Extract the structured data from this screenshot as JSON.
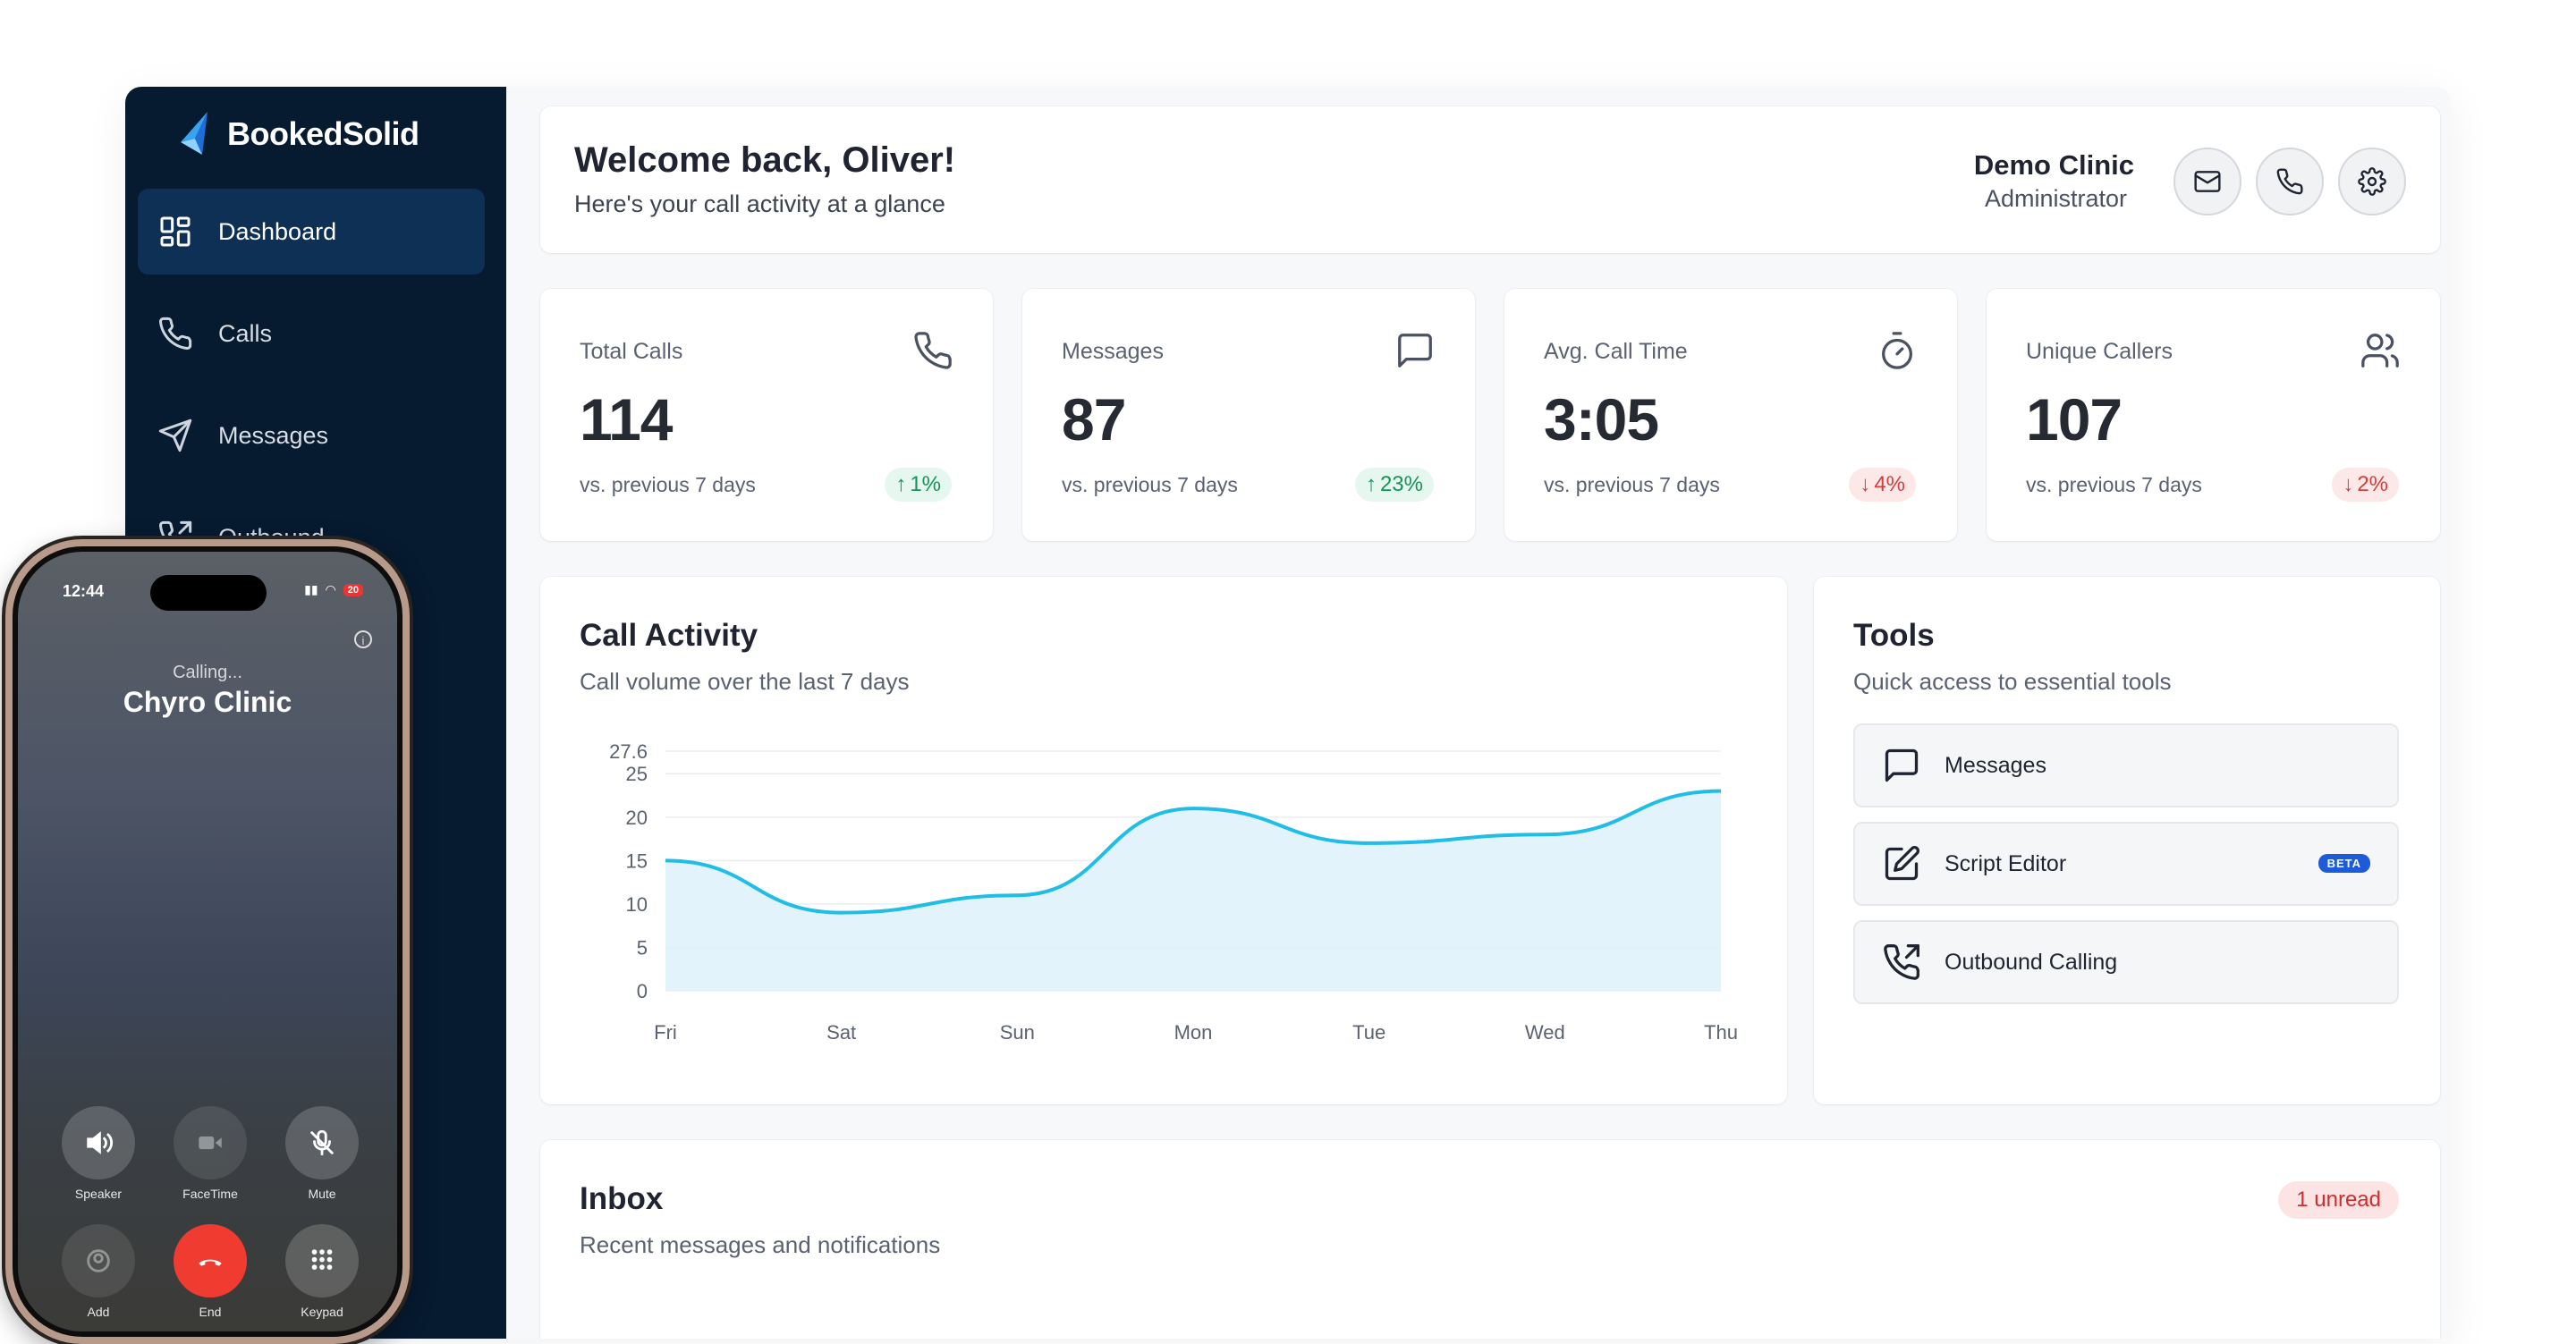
{
  "brand": {
    "name": "BookedSolid"
  },
  "sidebar": {
    "items": [
      {
        "label": "Dashboard",
        "icon": "dashboard-icon",
        "active": true
      },
      {
        "label": "Calls",
        "icon": "phone-icon"
      },
      {
        "label": "Messages",
        "icon": "send-icon"
      },
      {
        "label": "Outbound",
        "icon": "phone-outgoing-icon"
      }
    ]
  },
  "header": {
    "title": "Welcome back, Oliver!",
    "subtitle": "Here's your call activity at a glance",
    "clinic": "Demo Clinic",
    "role": "Administrator",
    "buttons": [
      "mail-icon",
      "phone-icon",
      "settings-icon"
    ]
  },
  "stats": [
    {
      "label": "Total Calls",
      "value": "114",
      "compare": "vs. previous 7 days",
      "change": "1%",
      "direction": "up",
      "icon": "phone-icon"
    },
    {
      "label": "Messages",
      "value": "87",
      "compare": "vs. previous 7 days",
      "change": "23%",
      "direction": "up",
      "icon": "message-square-icon"
    },
    {
      "label": "Avg. Call Time",
      "value": "3:05",
      "compare": "vs. previous 7 days",
      "change": "4%",
      "direction": "down",
      "icon": "timer-icon"
    },
    {
      "label": "Unique Callers",
      "value": "107",
      "compare": "vs. previous 7 days",
      "change": "2%",
      "direction": "down",
      "icon": "users-icon"
    }
  ],
  "activity": {
    "title": "Call Activity",
    "subtitle": "Call volume over the last 7 days"
  },
  "chart_data": {
    "type": "area",
    "categories": [
      "Fri",
      "Sat",
      "Sun",
      "Mon",
      "Tue",
      "Wed",
      "Thu"
    ],
    "values": [
      15,
      9,
      11,
      21,
      17,
      18,
      23
    ],
    "ylim": [
      0,
      27.6
    ],
    "yticks": [
      "0",
      "5",
      "10",
      "15",
      "20",
      "25",
      "27.6"
    ],
    "grid": true,
    "colors": {
      "line": "#20bde6",
      "fill": "#dff2fb"
    }
  },
  "tools": {
    "title": "Tools",
    "subtitle": "Quick access to essential tools",
    "items": [
      {
        "label": "Messages",
        "icon": "message-square-icon"
      },
      {
        "label": "Script Editor",
        "icon": "edit-icon",
        "badge": "BETA"
      },
      {
        "label": "Outbound Calling",
        "icon": "phone-outgoing-icon"
      }
    ]
  },
  "inbox": {
    "title": "Inbox",
    "subtitle": "Recent messages and notifications",
    "unread": "1 unread"
  },
  "phone": {
    "time": "12:44",
    "battery": "20",
    "status": "Calling...",
    "contact": "Chyro Clinic",
    "buttons": [
      {
        "label": "Speaker",
        "icon": "speaker-icon"
      },
      {
        "label": "FaceTime",
        "icon": "video-icon"
      },
      {
        "label": "Mute",
        "icon": "mic-off-icon"
      },
      {
        "label": "Add",
        "icon": "add-contact-icon"
      },
      {
        "label": "End",
        "icon": "end-call-icon"
      },
      {
        "label": "Keypad",
        "icon": "keypad-icon"
      }
    ]
  }
}
